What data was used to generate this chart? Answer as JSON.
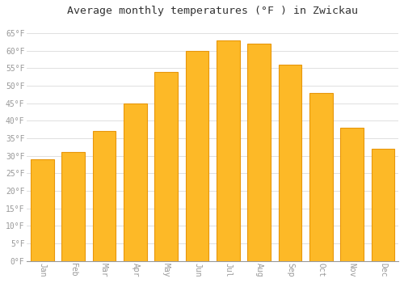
{
  "months": [
    "Jan",
    "Feb",
    "Mar",
    "Apr",
    "May",
    "Jun",
    "Jul",
    "Aug",
    "Sep",
    "Oct",
    "Nov",
    "Dec"
  ],
  "values": [
    29,
    31,
    37,
    45,
    54,
    60,
    63,
    62,
    56,
    48,
    38,
    32
  ],
  "bar_color": "#FDB927",
  "bar_edge_color": "#E8960A",
  "title": "Average monthly temperatures (°F ) in Zwickau",
  "title_fontsize": 9.5,
  "ylim": [
    0,
    68
  ],
  "yticks": [
    0,
    5,
    10,
    15,
    20,
    25,
    30,
    35,
    40,
    45,
    50,
    55,
    60,
    65
  ],
  "ytick_labels": [
    "0°F",
    "5°F",
    "10°F",
    "15°F",
    "20°F",
    "25°F",
    "30°F",
    "35°F",
    "40°F",
    "45°F",
    "50°F",
    "55°F",
    "60°F",
    "65°F"
  ],
  "background_color": "#ffffff",
  "grid_color": "#e0e0e0",
  "tick_label_color": "#999999",
  "font_family": "monospace",
  "bar_width": 0.75,
  "xtick_rotation": 270
}
